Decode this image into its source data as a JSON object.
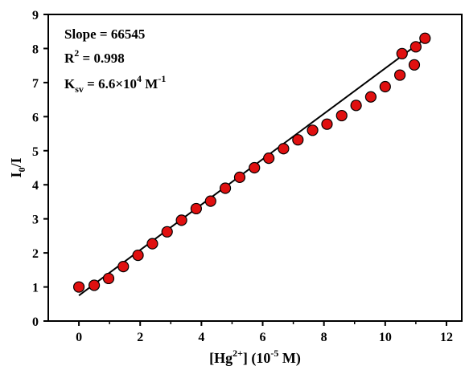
{
  "chart_data": {
    "type": "scatter",
    "xlabel": "[Hg2+] (10-5 M)",
    "xlabel_parts": {
      "pre": "[Hg",
      "sup": "2+",
      "mid": "] (10",
      "sup2": "-5",
      "post": " M)"
    },
    "ylabel": "I0/I",
    "ylabel_parts": {
      "main": "I",
      "sub": "0",
      "post": "/I"
    },
    "xlim": [
      -1,
      12.5
    ],
    "ylim": [
      0,
      9
    ],
    "xticks": [
      0,
      2,
      4,
      6,
      8,
      10,
      12
    ],
    "yticks": [
      0,
      1,
      2,
      3,
      4,
      5,
      6,
      7,
      8,
      9
    ],
    "grid": false,
    "annotations": {
      "slope": "Slope = 66545",
      "r2": {
        "pre": "R",
        "sup": "2",
        "post": " = 0.998"
      },
      "ksv": {
        "pre": "K",
        "sub": "sv",
        "mid": " = 6.6×10",
        "sup": "4",
        "post": " M",
        "sup2": "-1"
      }
    },
    "points": [
      [
        0.0,
        1.0
      ],
      [
        0.5,
        1.05
      ],
      [
        0.97,
        1.25
      ],
      [
        1.45,
        1.6
      ],
      [
        1.93,
        1.93
      ],
      [
        2.4,
        2.27
      ],
      [
        2.88,
        2.62
      ],
      [
        3.35,
        2.96
      ],
      [
        3.83,
        3.3
      ],
      [
        4.3,
        3.52
      ],
      [
        4.78,
        3.9
      ],
      [
        5.25,
        4.22
      ],
      [
        5.73,
        4.5
      ],
      [
        6.2,
        4.78
      ],
      [
        6.68,
        5.06
      ],
      [
        7.15,
        5.32
      ],
      [
        7.63,
        5.6
      ],
      [
        8.1,
        5.78
      ],
      [
        8.58,
        6.03
      ],
      [
        9.05,
        6.33
      ],
      [
        9.53,
        6.58
      ],
      [
        10.0,
        6.88
      ],
      [
        10.48,
        7.22
      ],
      [
        10.95,
        7.52
      ],
      [
        11.3,
        8.3
      ],
      [
        10.55,
        7.85
      ],
      [
        11.0,
        8.05
      ]
    ],
    "fit_line": {
      "x": [
        0.0,
        11.35
      ],
      "y": [
        0.75,
        8.32
      ]
    },
    "marker_color": "#e01010",
    "marker_edge": "#000000",
    "line_color": "#000000"
  }
}
